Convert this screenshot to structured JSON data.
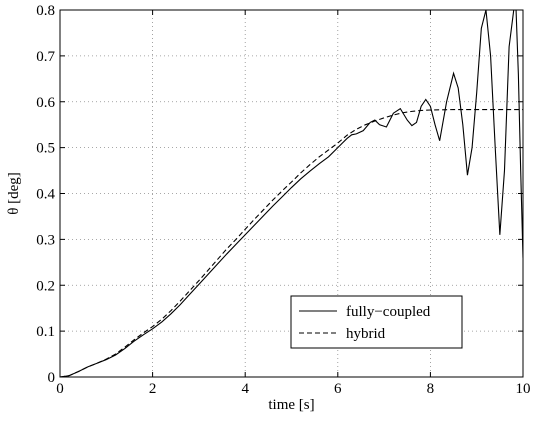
{
  "chart_data": {
    "type": "line",
    "title": "",
    "xlabel": "time [s]",
    "ylabel": "θ [deg]",
    "xlim": [
      0,
      10
    ],
    "ylim": [
      0,
      0.8
    ],
    "x_ticks": [
      0,
      2,
      4,
      6,
      8,
      10
    ],
    "y_ticks": [
      0,
      0.1,
      0.2,
      0.3,
      0.4,
      0.5,
      0.6,
      0.7,
      0.8
    ],
    "x_tick_labels": [
      "0",
      "2",
      "4",
      "6",
      "8",
      "10"
    ],
    "y_tick_labels": [
      "0",
      "0.1",
      "0.2",
      "0.3",
      "0.4",
      "0.5",
      "0.6",
      "0.7",
      "0.8"
    ],
    "grid": true,
    "legend_position": "lower-right",
    "series": [
      {
        "name": "fully−coupled",
        "line_style": "solid",
        "color": "#000000",
        "x": [
          0,
          0.2,
          0.4,
          0.6,
          0.8,
          1.0,
          1.2,
          1.4,
          1.6,
          1.8,
          2.0,
          2.2,
          2.4,
          2.6,
          2.8,
          3.0,
          3.2,
          3.4,
          3.6,
          3.8,
          4.0,
          4.2,
          4.4,
          4.6,
          4.8,
          5.0,
          5.2,
          5.4,
          5.6,
          5.8,
          6.0,
          6.1,
          6.2,
          6.3,
          6.4,
          6.55,
          6.7,
          6.8,
          6.9,
          7.05,
          7.2,
          7.35,
          7.5,
          7.6,
          7.7,
          7.8,
          7.9,
          8.0,
          8.1,
          8.2,
          8.35,
          8.5,
          8.6,
          8.7,
          8.8,
          8.9,
          9.0,
          9.1,
          9.2,
          9.3,
          9.4,
          9.5,
          9.6,
          9.7,
          9.8,
          9.85,
          9.9,
          9.95,
          10.0
        ],
        "y": [
          0,
          0.003,
          0.012,
          0.022,
          0.03,
          0.038,
          0.048,
          0.062,
          0.078,
          0.092,
          0.105,
          0.12,
          0.138,
          0.158,
          0.18,
          0.202,
          0.224,
          0.246,
          0.268,
          0.289,
          0.31,
          0.331,
          0.352,
          0.373,
          0.393,
          0.413,
          0.432,
          0.449,
          0.465,
          0.48,
          0.5,
          0.51,
          0.52,
          0.528,
          0.53,
          0.537,
          0.555,
          0.56,
          0.55,
          0.545,
          0.575,
          0.585,
          0.56,
          0.548,
          0.555,
          0.59,
          0.605,
          0.59,
          0.55,
          0.515,
          0.6,
          0.662,
          0.63,
          0.55,
          0.44,
          0.5,
          0.62,
          0.76,
          0.8,
          0.7,
          0.5,
          0.31,
          0.45,
          0.72,
          0.8,
          0.8,
          0.66,
          0.45,
          0.26
        ]
      },
      {
        "name": "hybrid",
        "line_style": "dashed",
        "color": "#000000",
        "x": [
          0,
          0.2,
          0.4,
          0.6,
          0.8,
          1.0,
          1.2,
          1.4,
          1.6,
          1.8,
          2.0,
          2.2,
          2.4,
          2.6,
          2.8,
          3.0,
          3.2,
          3.4,
          3.6,
          3.8,
          4.0,
          4.2,
          4.4,
          4.6,
          4.8,
          5.0,
          5.2,
          5.4,
          5.6,
          5.8,
          6.0,
          6.2,
          6.4,
          6.6,
          6.8,
          7.0,
          7.2,
          7.4,
          7.6,
          7.8,
          8.0,
          8.5,
          9.0,
          9.5,
          10.0
        ],
        "y": [
          0,
          0.003,
          0.012,
          0.022,
          0.03,
          0.039,
          0.05,
          0.065,
          0.081,
          0.096,
          0.11,
          0.126,
          0.145,
          0.166,
          0.188,
          0.21,
          0.233,
          0.256,
          0.279,
          0.3,
          0.322,
          0.344,
          0.365,
          0.386,
          0.406,
          0.425,
          0.445,
          0.463,
          0.48,
          0.495,
          0.51,
          0.527,
          0.54,
          0.55,
          0.558,
          0.565,
          0.571,
          0.576,
          0.579,
          0.581,
          0.582,
          0.583,
          0.583,
          0.583,
          0.583
        ]
      }
    ]
  }
}
